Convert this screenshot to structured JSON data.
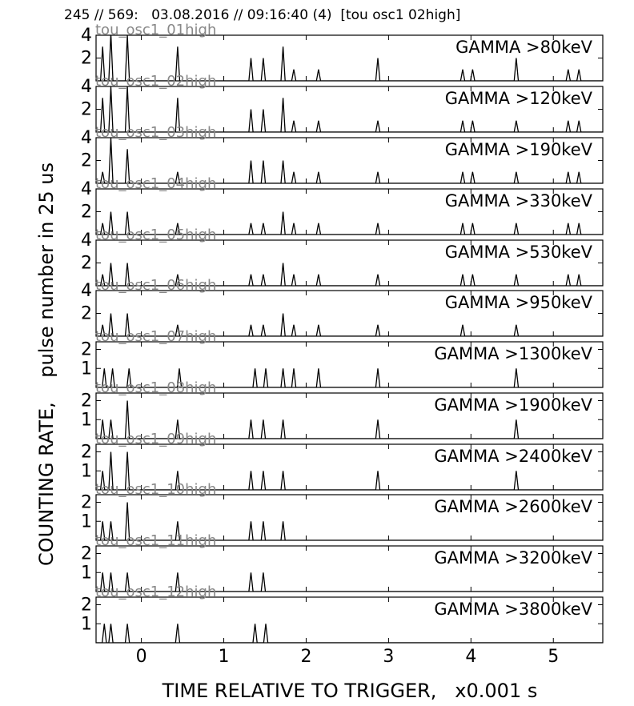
{
  "header": "245 // 569:   03.08.2016 // 09:16:40 (4)  [tou osc1 02high]",
  "ylabel": "COUNTING RATE,    pulse number in 25 us",
  "xlabel": "TIME RELATIVE TO TRIGGER,   x0.001 s",
  "chart_data": {
    "type": "line",
    "title": "245 // 569:   03.08.2016 // 09:16:40 (4)  [tou osc1 02high]",
    "xlabel": "TIME RELATIVE TO TRIGGER,   x0.001 s",
    "ylabel": "COUNTING RATE,    pulse number in 25 us",
    "xlim": [
      -0.55,
      5.6
    ],
    "xticks": [
      0,
      1,
      2,
      3,
      4,
      5
    ],
    "grid": false,
    "panels": [
      {
        "channel": "tou_osc1_01high",
        "label": "GAMMA >80keV",
        "ylim": [
          0,
          4
        ],
        "yticks": [
          2,
          4
        ],
        "events": [
          [
            -0.47,
            3
          ],
          [
            -0.37,
            4.2
          ],
          [
            -0.17,
            4
          ],
          [
            0.44,
            3
          ],
          [
            1.33,
            2
          ],
          [
            1.48,
            2
          ],
          [
            1.72,
            3
          ],
          [
            1.85,
            1
          ],
          [
            2.15,
            1
          ],
          [
            2.87,
            2
          ],
          [
            3.9,
            1
          ],
          [
            4.02,
            1
          ],
          [
            4.55,
            2
          ],
          [
            5.18,
            1
          ],
          [
            5.31,
            1
          ]
        ]
      },
      {
        "channel": "tou_osc1_02high",
        "label": "GAMMA >120keV",
        "ylim": [
          0,
          4
        ],
        "yticks": [
          2,
          4
        ],
        "events": [
          [
            -0.47,
            3
          ],
          [
            -0.37,
            4
          ],
          [
            -0.17,
            4
          ],
          [
            0.44,
            3
          ],
          [
            1.33,
            2
          ],
          [
            1.48,
            2
          ],
          [
            1.72,
            3
          ],
          [
            1.85,
            1
          ],
          [
            2.15,
            1
          ],
          [
            2.87,
            1
          ],
          [
            3.9,
            1
          ],
          [
            4.02,
            1
          ],
          [
            4.55,
            1
          ],
          [
            5.18,
            1
          ],
          [
            5.31,
            1
          ]
        ]
      },
      {
        "channel": "tou_osc1_03high",
        "label": "GAMMA >190keV",
        "ylim": [
          0,
          4
        ],
        "yticks": [
          2,
          4
        ],
        "events": [
          [
            -0.47,
            1
          ],
          [
            -0.37,
            4
          ],
          [
            -0.17,
            3
          ],
          [
            0.44,
            1
          ],
          [
            1.33,
            2
          ],
          [
            1.48,
            2
          ],
          [
            1.72,
            2
          ],
          [
            1.85,
            1
          ],
          [
            2.15,
            1
          ],
          [
            2.87,
            1
          ],
          [
            3.9,
            1
          ],
          [
            4.02,
            1
          ],
          [
            4.55,
            1
          ],
          [
            5.18,
            1
          ],
          [
            5.31,
            1
          ]
        ]
      },
      {
        "channel": "tou_osc1_04high",
        "label": "GAMMA >330keV",
        "ylim": [
          0,
          4
        ],
        "yticks": [
          2,
          4
        ],
        "events": [
          [
            -0.47,
            1
          ],
          [
            -0.37,
            2
          ],
          [
            -0.17,
            2
          ],
          [
            0.44,
            1
          ],
          [
            1.33,
            1
          ],
          [
            1.48,
            1
          ],
          [
            1.72,
            2
          ],
          [
            1.85,
            1
          ],
          [
            2.15,
            1
          ],
          [
            2.87,
            1
          ],
          [
            3.9,
            1
          ],
          [
            4.02,
            1
          ],
          [
            4.55,
            1
          ],
          [
            5.18,
            1
          ],
          [
            5.31,
            1
          ]
        ]
      },
      {
        "channel": "tou_osc1_05high",
        "label": "GAMMA >530keV",
        "ylim": [
          0,
          4
        ],
        "yticks": [
          2,
          4
        ],
        "events": [
          [
            -0.47,
            1
          ],
          [
            -0.37,
            2
          ],
          [
            -0.17,
            2
          ],
          [
            0.44,
            1
          ],
          [
            1.33,
            1
          ],
          [
            1.48,
            1
          ],
          [
            1.72,
            2
          ],
          [
            1.85,
            1
          ],
          [
            2.15,
            1
          ],
          [
            2.87,
            1
          ],
          [
            3.9,
            1
          ],
          [
            4.02,
            1
          ],
          [
            4.55,
            1
          ],
          [
            5.18,
            1
          ],
          [
            5.31,
            1
          ]
        ]
      },
      {
        "channel": "tou_osc1_06high",
        "label": "GAMMA >950keV",
        "ylim": [
          0,
          4
        ],
        "yticks": [
          2,
          4
        ],
        "events": [
          [
            -0.47,
            1
          ],
          [
            -0.37,
            2
          ],
          [
            -0.17,
            2
          ],
          [
            0.44,
            1
          ],
          [
            1.33,
            1
          ],
          [
            1.48,
            1
          ],
          [
            1.72,
            2
          ],
          [
            1.85,
            1
          ],
          [
            2.15,
            1
          ],
          [
            2.87,
            1
          ],
          [
            3.9,
            1
          ],
          [
            4.55,
            1
          ]
        ]
      },
      {
        "channel": "tou_osc1_07high",
        "label": "GAMMA >1300keV",
        "ylim": [
          0,
          2.4
        ],
        "yticks": [
          1,
          2
        ],
        "events": [
          [
            -0.45,
            1
          ],
          [
            -0.35,
            1
          ],
          [
            -0.15,
            1
          ],
          [
            0.46,
            1
          ],
          [
            1.38,
            1
          ],
          [
            1.51,
            1
          ],
          [
            1.72,
            1
          ],
          [
            1.85,
            1
          ],
          [
            2.15,
            1
          ],
          [
            2.87,
            1
          ],
          [
            4.55,
            1
          ]
        ]
      },
      {
        "channel": "tou_osc1_08high",
        "label": "GAMMA >1900keV",
        "ylim": [
          0,
          2.4
        ],
        "yticks": [
          1,
          2
        ],
        "events": [
          [
            -0.47,
            1
          ],
          [
            -0.37,
            1
          ],
          [
            -0.17,
            2
          ],
          [
            0.44,
            1
          ],
          [
            1.33,
            1
          ],
          [
            1.48,
            1
          ],
          [
            1.72,
            1
          ],
          [
            2.87,
            1
          ],
          [
            4.55,
            1
          ]
        ]
      },
      {
        "channel": "tou_osc1_09high",
        "label": "GAMMA >2400keV",
        "ylim": [
          0,
          2.4
        ],
        "yticks": [
          1,
          2
        ],
        "events": [
          [
            -0.47,
            1
          ],
          [
            -0.37,
            2
          ],
          [
            -0.17,
            2
          ],
          [
            0.44,
            1
          ],
          [
            1.33,
            1
          ],
          [
            1.48,
            1
          ],
          [
            1.72,
            1
          ],
          [
            2.87,
            1
          ],
          [
            4.55,
            1
          ]
        ]
      },
      {
        "channel": "tou_osc1_10high",
        "label": "GAMMA >2600keV",
        "ylim": [
          0,
          2.4
        ],
        "yticks": [
          1,
          2
        ],
        "events": [
          [
            -0.47,
            1
          ],
          [
            -0.37,
            1
          ],
          [
            -0.17,
            2
          ],
          [
            0.44,
            1
          ],
          [
            1.33,
            1
          ],
          [
            1.48,
            1
          ],
          [
            1.72,
            1
          ]
        ]
      },
      {
        "channel": "tou_osc1_11high",
        "label": "GAMMA >3200keV",
        "ylim": [
          0,
          2.4
        ],
        "yticks": [
          1,
          2
        ],
        "events": [
          [
            -0.47,
            1
          ],
          [
            -0.37,
            1
          ],
          [
            -0.17,
            1
          ],
          [
            0.44,
            1
          ],
          [
            1.33,
            1
          ],
          [
            1.48,
            1
          ]
        ]
      },
      {
        "channel": "tou_osc1_12high",
        "label": "GAMMA >3800keV",
        "ylim": [
          0,
          2.4
        ],
        "yticks": [
          1,
          2
        ],
        "events": [
          [
            -0.45,
            1
          ],
          [
            -0.37,
            1
          ],
          [
            -0.17,
            1
          ],
          [
            0.44,
            1
          ],
          [
            1.38,
            1
          ],
          [
            1.51,
            1
          ]
        ]
      }
    ]
  }
}
